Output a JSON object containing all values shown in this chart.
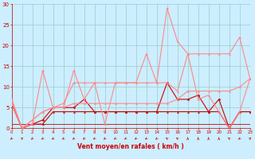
{
  "xlabel": "Vent moyen/en rafales ( km/h )",
  "bg_color": "#cceeff",
  "grid_color": "#99cccc",
  "text_color": "#cc0000",
  "xlim": [
    0,
    23
  ],
  "ylim": [
    0,
    30
  ],
  "xticks": [
    0,
    1,
    2,
    3,
    4,
    5,
    6,
    7,
    8,
    9,
    10,
    11,
    12,
    13,
    14,
    15,
    16,
    17,
    18,
    19,
    20,
    21,
    22,
    23
  ],
  "yticks": [
    0,
    5,
    10,
    15,
    20,
    25,
    30
  ],
  "series": [
    {
      "x": [
        0,
        1,
        2,
        3,
        4,
        5,
        6,
        7,
        8,
        9,
        10,
        11,
        12,
        13,
        14,
        15,
        16,
        17,
        18,
        19,
        20,
        21,
        22,
        23
      ],
      "y": [
        6,
        0,
        1,
        2,
        5,
        5,
        5,
        7,
        4,
        4,
        4,
        4,
        4,
        4,
        4,
        11,
        7,
        7,
        8,
        4,
        7,
        0,
        4,
        4
      ],
      "color": "#cc0000",
      "lw": 0.8,
      "marker": "D",
      "ms": 1.5,
      "alpha": 1.0
    },
    {
      "x": [
        0,
        1,
        2,
        3,
        4,
        5,
        6,
        7,
        8,
        9,
        10,
        11,
        12,
        13,
        14,
        15,
        16,
        17,
        18,
        19,
        20,
        21,
        22,
        23
      ],
      "y": [
        6,
        0,
        1,
        1,
        4,
        4,
        4,
        4,
        4,
        4,
        4,
        4,
        4,
        4,
        4,
        4,
        4,
        4,
        4,
        4,
        4,
        0,
        4,
        4
      ],
      "color": "#cc0000",
      "lw": 0.8,
      "marker": "^",
      "ms": 1.5,
      "alpha": 1.0
    },
    {
      "x": [
        0,
        1,
        2,
        3,
        4,
        5,
        6,
        7,
        8,
        9,
        10,
        11,
        12,
        13,
        14,
        15,
        16,
        17,
        18,
        19,
        20,
        21,
        22,
        23
      ],
      "y": [
        6,
        0,
        1,
        14,
        5,
        5,
        14,
        7,
        11,
        1,
        11,
        11,
        11,
        18,
        11,
        29,
        21,
        18,
        7,
        8,
        4,
        0,
        4,
        12
      ],
      "color": "#ff8888",
      "lw": 0.8,
      "marker": "^",
      "ms": 1.5,
      "alpha": 1.0
    },
    {
      "x": [
        0,
        1,
        2,
        3,
        4,
        5,
        6,
        7,
        8,
        9,
        10,
        11,
        12,
        13,
        14,
        15,
        16,
        17,
        18,
        19,
        20,
        21,
        22,
        23
      ],
      "y": [
        7,
        0,
        2,
        4,
        5,
        6,
        11,
        11,
        11,
        11,
        11,
        11,
        11,
        11,
        11,
        11,
        9,
        18,
        18,
        18,
        18,
        18,
        22,
        12
      ],
      "color": "#ff8888",
      "lw": 0.8,
      "marker": "^",
      "ms": 1.5,
      "alpha": 1.0
    },
    {
      "x": [
        0,
        1,
        2,
        3,
        4,
        5,
        6,
        7,
        8,
        9,
        10,
        11,
        12,
        13,
        14,
        15,
        16,
        17,
        18,
        19,
        20,
        21,
        22,
        23
      ],
      "y": [
        7,
        0,
        2,
        4,
        5,
        5,
        6,
        6,
        6,
        6,
        6,
        6,
        6,
        6,
        6,
        6,
        7,
        9,
        9,
        9,
        9,
        9,
        10,
        12
      ],
      "color": "#ff8888",
      "lw": 0.8,
      "marker": "^",
      "ms": 1.5,
      "alpha": 1.0
    },
    {
      "x": [
        0,
        1,
        2,
        3,
        4,
        5,
        6,
        7,
        8,
        9,
        10,
        11,
        12,
        13,
        14,
        15,
        16,
        17,
        18,
        19,
        20,
        21,
        22,
        23
      ],
      "y": [
        1,
        1,
        1,
        1,
        1,
        1,
        1,
        1,
        1,
        1,
        1,
        1,
        1,
        1,
        1,
        1,
        1,
        1,
        1,
        1,
        1,
        1,
        1,
        1
      ],
      "color": "#cc0000",
      "lw": 0.6,
      "marker": null,
      "ms": 0,
      "alpha": 1.0
    }
  ],
  "wind_arrows": {
    "x": [
      0,
      1,
      2,
      3,
      4,
      5,
      6,
      7,
      8,
      9,
      10,
      11,
      12,
      13,
      14,
      15,
      16,
      17,
      18,
      19,
      20,
      21,
      22,
      23
    ],
    "angles": [
      225,
      45,
      225,
      225,
      225,
      225,
      225,
      225,
      225,
      225,
      225,
      225,
      225,
      225,
      225,
      315,
      315,
      0,
      0,
      0,
      0,
      315,
      225,
      45
    ]
  }
}
